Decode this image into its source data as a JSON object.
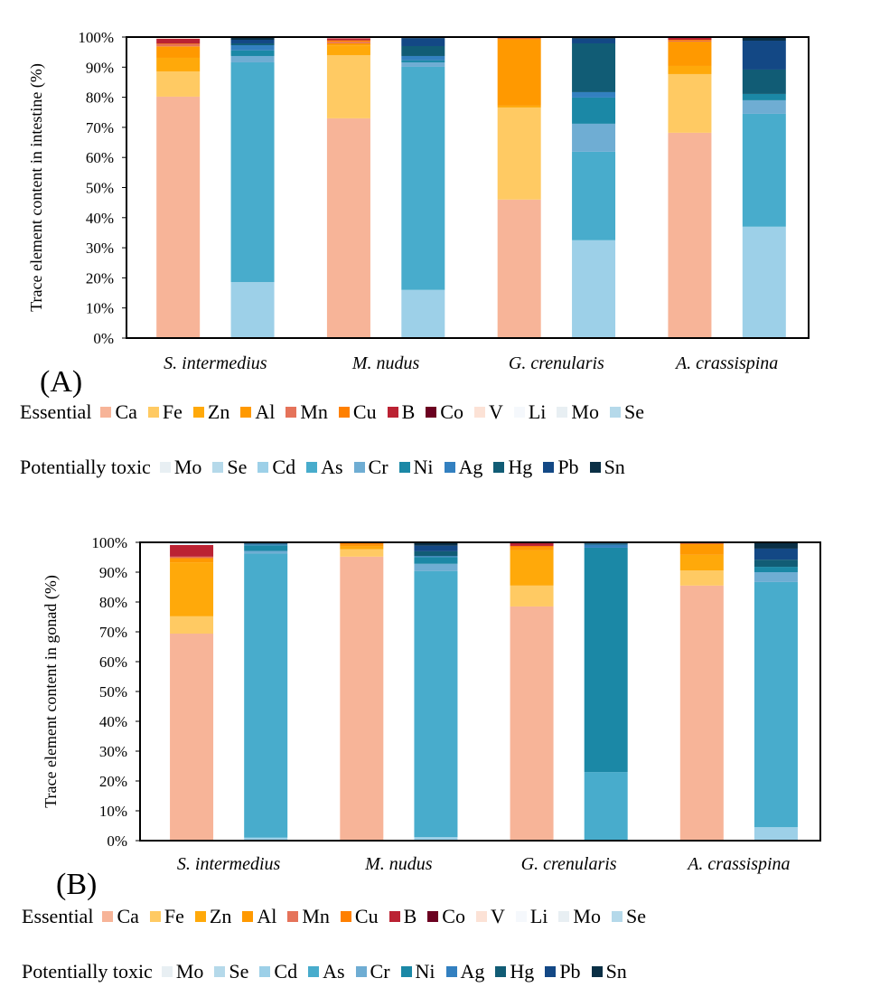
{
  "colors": {
    "Ca": "#F7B498",
    "Fe": "#FFCA63",
    "Zn": "#FFA90A",
    "Al": "#FF9900",
    "Mn": "#E5735A",
    "Cu": "#FF8000",
    "B": "#BB2233",
    "Co": "#6B0020",
    "V": "#FCE2D6",
    "Li": "#F5F8FC",
    "Mo": "#E8EFF3",
    "Se": "#B5D9EA",
    "Cd": "#9DD0E8",
    "As": "#48ACCC",
    "Cr": "#6FADD3",
    "Ni": "#1B88A6",
    "Ag": "#3380C0",
    "Hg": "#115C75",
    "Pb": "#134885",
    "Sn": "#0A2F45"
  },
  "legend": {
    "essential_label": "Essential",
    "essential": [
      "Ca",
      "Fe",
      "Zn",
      "Al",
      "Mn",
      "Cu",
      "B",
      "Co",
      "V",
      "Li",
      "Mo",
      "Se"
    ],
    "toxic_label": "Potentially toxic",
    "toxic": [
      "Mo",
      "Se",
      "Cd",
      "As",
      "Cr",
      "Ni",
      "Ag",
      "Hg",
      "Pb",
      "Sn"
    ]
  },
  "chart_data": [
    {
      "panel": "(A)",
      "type": "bar",
      "stacked": true,
      "ylabel": "Trace element content in intestine (%)",
      "ylim": [
        0,
        100
      ],
      "yticks": [
        "0%",
        "10%",
        "20%",
        "30%",
        "40%",
        "50%",
        "60%",
        "70%",
        "80%",
        "90%",
        "100%"
      ],
      "categories": [
        "S. intermedius",
        "M. nudus",
        "G. crenularis",
        "A. crassispina"
      ],
      "bars": [
        {
          "category": "S. intermedius",
          "group": "essential",
          "values": {
            "Ca": 80.2,
            "Fe": 8.4,
            "Zn": 4.5,
            "Al": 3.8,
            "Mn": 0.7,
            "Cu": 0.2,
            "B": 1.6,
            "V": 0.3,
            "Mo": 0.3
          }
        },
        {
          "category": "S. intermedius",
          "group": "toxic",
          "values": {
            "Cd": 18.6,
            "As": 73.0,
            "Cr": 2.1,
            "Ni": 1.9,
            "Ag": 1.7,
            "Hg": 0.6,
            "Pb": 1.2,
            "Sn": 0.9
          }
        },
        {
          "category": "M. nudus",
          "group": "essential",
          "values": {
            "Ca": 73.0,
            "Fe": 21.0,
            "Zn": 3.2,
            "Al": 0.7,
            "Mn": 0.5,
            "Cu": 0.5,
            "B": 0.7,
            "V": 0.4
          }
        },
        {
          "category": "M. nudus",
          "group": "toxic",
          "values": {
            "Cd": 16.0,
            "As": 74.1,
            "Cr": 1.5,
            "Ni": 0.7,
            "Ag": 1.4,
            "Hg": 3.3,
            "Pb": 2.6,
            "Sn": 0.4
          }
        },
        {
          "category": "G. crenularis",
          "group": "essential",
          "values": {
            "Ca": 46.0,
            "Fe": 30.6,
            "Zn": 0.6,
            "Al": 22.0,
            "Cu": 0.4,
            "B": 0.4
          }
        },
        {
          "category": "G. crenularis",
          "group": "toxic",
          "values": {
            "Cd": 32.5,
            "As": 29.4,
            "Cr": 9.3,
            "Ni": 8.7,
            "Ag": 1.8,
            "Hg": 16.2,
            "Pb": 1.6,
            "Sn": 0.5
          }
        },
        {
          "category": "A. crassispina",
          "group": "essential",
          "values": {
            "Ca": 68.2,
            "Fe": 19.5,
            "Zn": 2.7,
            "Al": 8.1,
            "Mn": 0.3,
            "Cu": 0.3,
            "B": 0.7,
            "V": 0.2
          }
        },
        {
          "category": "A. crassispina",
          "group": "toxic",
          "values": {
            "Cd": 37.0,
            "As": 37.5,
            "Cr": 4.5,
            "Ni": 2.1,
            "Hg": 8.1,
            "Pb": 9.6,
            "Sn": 1.2
          }
        }
      ]
    },
    {
      "panel": "(B)",
      "type": "bar",
      "stacked": true,
      "ylabel": "Trace element content in gonad (%)",
      "ylim": [
        0,
        100
      ],
      "yticks": [
        "0%",
        "10%",
        "20%",
        "30%",
        "40%",
        "50%",
        "60%",
        "70%",
        "80%",
        "90%",
        "100%"
      ],
      "categories": [
        "S. intermedius",
        "M. nudus",
        "G. crenularis",
        "A. crassispina"
      ],
      "bars": [
        {
          "category": "S. intermedius",
          "group": "essential",
          "values": {
            "Ca": 69.4,
            "Fe": 5.8,
            "Zn": 18.1,
            "Al": 1.4,
            "Mn": 0.5,
            "B": 3.9,
            "Li": 0.4,
            "Se": 0.5
          }
        },
        {
          "category": "S. intermedius",
          "group": "toxic",
          "values": {
            "Cd": 1.0,
            "As": 95.2,
            "Cr": 0.9,
            "Ni": 1.9,
            "Ag": 0.3,
            "Hg": 0.3,
            "Pb": 0.4
          }
        },
        {
          "category": "M. nudus",
          "group": "essential",
          "values": {
            "Ca": 95.2,
            "Fe": 2.5,
            "Zn": 0.9,
            "Al": 0.6,
            "Cu": 0.5,
            "B": 0.3
          }
        },
        {
          "category": "M. nudus",
          "group": "toxic",
          "values": {
            "Cd": 1.2,
            "As": 89.2,
            "Cr": 2.4,
            "Ni": 2.3,
            "Ag": 0.3,
            "Hg": 1.6,
            "Pb": 1.9,
            "Sn": 1.1
          }
        },
        {
          "category": "G. crenularis",
          "group": "essential",
          "values": {
            "Ca": 78.5,
            "Fe": 7.0,
            "Zn": 11.8,
            "Al": 1.0,
            "Cu": 0.5,
            "B": 1.0,
            "Mo": 0.2
          }
        },
        {
          "category": "G. crenularis",
          "group": "toxic",
          "values": {
            "Cd": 0.3,
            "As": 22.7,
            "Ni": 75.2,
            "Ag": 1.0,
            "Hg": 0.4,
            "Pb": 0.4
          }
        },
        {
          "category": "A. crassispina",
          "group": "essential",
          "values": {
            "Ca": 85.5,
            "Fe": 5.1,
            "Zn": 5.2,
            "Al": 3.6,
            "Cu": 0.2,
            "B": 0.4
          }
        },
        {
          "category": "A. crassispina",
          "group": "toxic",
          "values": {
            "Cd": 4.5,
            "As": 82.2,
            "Cr": 3.3,
            "Ni": 1.8,
            "Hg": 2.4,
            "Pb": 3.7,
            "Sn": 2.1
          }
        }
      ]
    }
  ]
}
